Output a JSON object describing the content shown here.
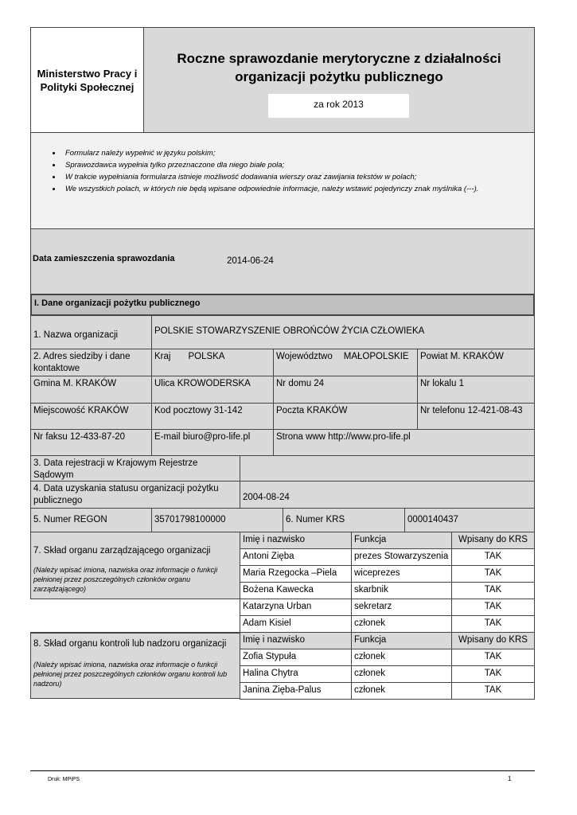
{
  "header": {
    "ministry": "Ministerstwo Pracy i Polityki Społecznej",
    "title_line1": "Roczne sprawozdanie merytoryczne z działalności",
    "title_line2": "organizacji pożytku publicznego",
    "year": "za rok 2013"
  },
  "instructions": [
    "Formularz należy wypełnić w języku polskim;",
    "Sprawozdawca wypełnia tylko przeznaczone dla niego białe pola;",
    "W trakcie wypełniania formularza istnieje możliwość dodawania wierszy oraz zawijania tekstów w polach;",
    "We wszystkich polach, w których nie będą wpisane odpowiednie informacje, należy wstawić pojedynczy znak myślnika (---)."
  ],
  "date_section": {
    "label": "Data zamieszczenia sprawozdania",
    "value": "2014-06-24"
  },
  "section1": {
    "title": "I. Dane organizacji pożytku publicznego",
    "name_label": "1. Nazwa organizacji",
    "name_value": "POLSKIE STOWARZYSZENIE OBROŃCÓW ŻYCIA CZŁOWIEKA",
    "address_label": "2. Adres siedziby i dane kontaktowe",
    "kraj_label": "Kraj",
    "kraj": "POLSKA",
    "woj_label": "Województwo",
    "woj": "MAŁOPOLSKIE",
    "powiat": "Powiat M. KRAKÓW",
    "gmina": "Gmina M. KRAKÓW",
    "ulica": "Ulica KROWODERSKA",
    "nr_domu": "Nr domu 24",
    "nr_lokalu": "Nr lokalu 1",
    "miejscowosc": "Miejscowość KRAKÓW",
    "kod": "Kod pocztowy 31-142",
    "poczta": "Poczta KRAKÓW",
    "telefon": "Nr telefonu 12-421-08-43",
    "faks": "Nr faksu 12-433-87-20",
    "email": "E-mail biuro@pro-life.pl",
    "www": "Strona www http://www.pro-life.pl",
    "krs_reg_label": "3. Data rejestracji w Krajowym Rejestrze Sądowym",
    "krs_reg_value": "",
    "status_label": "4. Data uzyskania statusu organizacji pożytku publicznego",
    "status_value": "2004-08-24",
    "regon_label": "5. Numer REGON",
    "regon": "35701798100000",
    "krs_label": "6. Numer KRS",
    "krs": "0000140437"
  },
  "board": {
    "label": "7. Skład organu zarządzającego organizacji",
    "note": "(Należy wpisać imiona, nazwiska oraz informacje o funkcji pełnionej przez poszczególnych członków organu zarządzającego)",
    "headers": [
      "Imię i nazwisko",
      "Funkcja",
      "Wpisany do KRS"
    ],
    "rows": [
      [
        "Antoni Zięba",
        "prezes Stowarzyszenia",
        "TAK"
      ],
      [
        "Maria Rzegocka –Piela",
        "wiceprezes",
        "TAK"
      ],
      [
        "Bożena Kawecka",
        "skarbnik",
        "TAK"
      ],
      [
        "Katarzyna Urban",
        "sekretarz",
        "TAK"
      ],
      [
        "Adam Kisiel",
        "członek",
        "TAK"
      ]
    ]
  },
  "supervisory": {
    "label": "8. Skład organu kontroli lub nadzoru organizacji",
    "note": "(Należy wpisać imiona, nazwiska oraz informacje o funkcji pełnionej przez poszczególnych członków organu kontroli lub nadzoru)",
    "headers": [
      "Imię i nazwisko",
      "Funkcja",
      "Wpisany do KRS"
    ],
    "rows": [
      [
        "Zofia Stypuła",
        "członek",
        "TAK"
      ],
      [
        "Halina Chytra",
        "członek",
        "TAK"
      ],
      [
        "Janina Zięba-Palus",
        "członek",
        "TAK"
      ]
    ]
  },
  "footer": {
    "left": "Druk: MPiPS",
    "page": "1"
  }
}
